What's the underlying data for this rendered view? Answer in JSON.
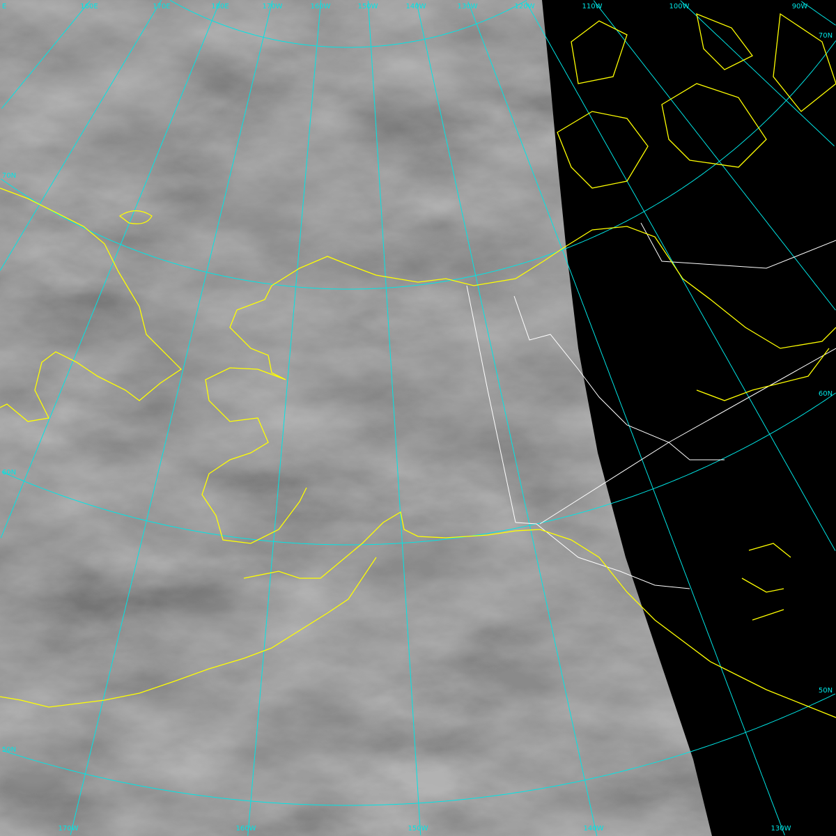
{
  "map": {
    "type": "satellite-imagery",
    "region": "Alaska",
    "colors": {
      "graticule": "#00e5e5",
      "coastline": "#ffff00",
      "borders": "#ffffff",
      "no_data": "#000000",
      "cloud_base": "#8a8a8a"
    },
    "top_labels": [
      "E",
      "160E",
      "170E",
      "180E",
      "170W",
      "160W",
      "150W",
      "140W",
      "130W",
      "120W",
      "110W",
      "100W",
      "90W"
    ],
    "bottom_labels": [
      "170W",
      "160W",
      "150W",
      "140W",
      "130W"
    ],
    "left_labels": [
      "70N",
      "60N",
      "50N"
    ],
    "right_labels": [
      "70N",
      "60N",
      "50N"
    ],
    "meridians_deg": [
      150,
      160,
      170,
      180,
      -170,
      -160,
      -150,
      -140,
      -130,
      -120,
      -110,
      -100,
      -90
    ],
    "parallels_deg": [
      80,
      70,
      60,
      50
    ]
  }
}
